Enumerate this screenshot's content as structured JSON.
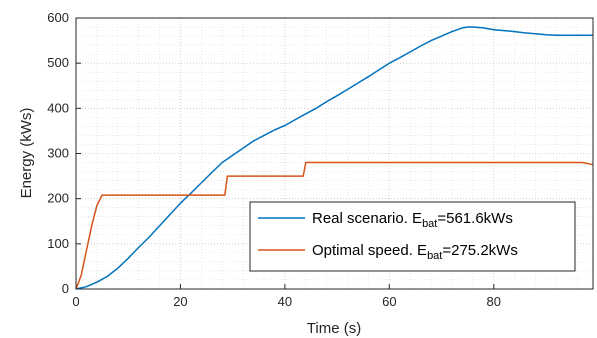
{
  "chart_data": {
    "type": "line",
    "xlabel": "Time (s)",
    "ylabel": "Energy (kWs)",
    "xlim": [
      0,
      99
    ],
    "ylim": [
      0,
      600
    ],
    "x_ticks": [
      0,
      20,
      40,
      60,
      80
    ],
    "y_ticks": [
      0,
      100,
      200,
      300,
      400,
      500,
      600
    ],
    "grid": "major and minor (dotted)",
    "legend_position": "bottom-right",
    "series": [
      {
        "name": "Real scenario. E_bat=561.6kWs",
        "color": "#0072BD",
        "x": [
          0,
          2,
          4,
          6,
          8,
          10,
          12,
          14,
          16,
          18,
          20,
          22,
          24,
          26,
          28,
          30,
          32,
          34,
          36,
          38,
          40,
          42,
          44,
          46,
          48,
          50,
          52,
          54,
          56,
          58,
          60,
          62,
          64,
          66,
          68,
          70,
          72,
          74,
          75,
          76,
          78,
          80,
          82,
          84,
          86,
          88,
          90,
          92,
          94,
          96,
          98,
          99
        ],
        "y": [
          0,
          5,
          15,
          28,
          46,
          68,
          92,
          115,
          140,
          165,
          190,
          212,
          235,
          258,
          280,
          296,
          312,
          328,
          340,
          352,
          362,
          375,
          388,
          400,
          415,
          428,
          442,
          456,
          470,
          485,
          500,
          512,
          525,
          538,
          550,
          560,
          570,
          578,
          580,
          580,
          578,
          574,
          572,
          570,
          567,
          565,
          563,
          562,
          561.8,
          561.6,
          561.6,
          561.6
        ]
      },
      {
        "name": "Optimal speed. E_bat=275.2kWs",
        "color": "#D95319",
        "x": [
          0,
          1,
          2,
          3,
          4,
          5,
          28.5,
          29,
          43.5,
          44,
          97,
          99
        ],
        "y": [
          0,
          30,
          85,
          140,
          185,
          208,
          208,
          250,
          250,
          280,
          280,
          275.2
        ]
      }
    ],
    "legend": [
      {
        "prefix": "Real scenario. E",
        "sub": "bat",
        "suffix": "=561.6kWs"
      },
      {
        "prefix": "Optimal speed. E",
        "sub": "bat",
        "suffix": "=275.2kWs"
      }
    ]
  }
}
